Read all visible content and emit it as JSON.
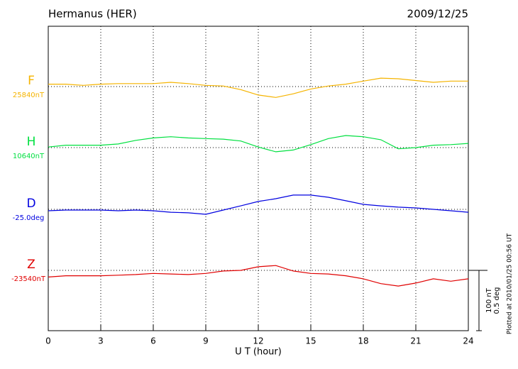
{
  "chart_data": {
    "type": "line",
    "title": "Hermanus (HER)",
    "date": "2009/12/25",
    "note": "Plotted at 2010/01/25 00:56 UT",
    "xlabel": "U T (hour)",
    "xlim": [
      0,
      24
    ],
    "xticks": [
      0,
      3,
      6,
      9,
      12,
      15,
      18,
      21,
      24
    ],
    "grid": true,
    "scale_bar": [
      {
        "value": 100,
        "label": "100 nT"
      },
      {
        "value": 0.5,
        "label": "0.5 deg"
      }
    ],
    "x": [
      0,
      1,
      2,
      3,
      4,
      5,
      6,
      7,
      8,
      9,
      10,
      11,
      12,
      13,
      14,
      15,
      16,
      17,
      18,
      19,
      20,
      21,
      22,
      23,
      24
    ],
    "series": [
      {
        "name": "F",
        "color": "#f5b400",
        "unit_scale": 0,
        "baseline": {
          "value": 25840,
          "label": "25840nT"
        },
        "values": [
          25844,
          25844,
          25842,
          25844,
          25845,
          25845,
          25845,
          25847,
          25845,
          25842,
          25841,
          25835,
          25826,
          25822,
          25828,
          25836,
          25841,
          25844,
          25849,
          25854,
          25853,
          25850,
          25847,
          25849,
          25849
        ]
      },
      {
        "name": "H",
        "color": "#00e040",
        "unit_scale": 0,
        "baseline": {
          "value": 10640,
          "label": "10640nT"
        },
        "values": [
          10641,
          10644,
          10644,
          10644,
          10646,
          10652,
          10656,
          10658,
          10656,
          10655,
          10654,
          10651,
          10641,
          10633,
          10636,
          10645,
          10655,
          10660,
          10658,
          10653,
          10638,
          10640,
          10644,
          10645,
          10647
        ]
      },
      {
        "name": "D",
        "color": "#0000e0",
        "unit_scale": 1,
        "baseline": {
          "value": -25.0,
          "label": "-25.0deg"
        },
        "values": [
          -25.012,
          -25.006,
          -25.006,
          -25.006,
          -25.012,
          -25.006,
          -25.012,
          -25.024,
          -25.029,
          -25.041,
          -25.006,
          -24.971,
          -24.935,
          -24.912,
          -24.882,
          -24.882,
          -24.9,
          -24.929,
          -24.959,
          -24.971,
          -24.982,
          -24.988,
          -25.0,
          -25.012,
          -25.024
        ]
      },
      {
        "name": "Z",
        "color": "#e00000",
        "unit_scale": 0,
        "baseline": {
          "value": -23540,
          "label": "-23540nT"
        },
        "values": [
          -23551,
          -23549,
          -23549,
          -23549,
          -23548,
          -23547,
          -23545,
          -23546,
          -23547,
          -23545,
          -23541,
          -23540,
          -23534,
          -23532,
          -23541,
          -23545,
          -23546,
          -23549,
          -23554,
          -23562,
          -23566,
          -23561,
          -23554,
          -23558,
          -23554
        ]
      }
    ]
  }
}
